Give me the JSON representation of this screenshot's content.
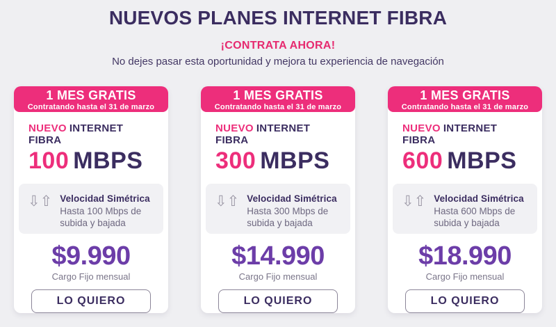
{
  "header": {
    "title": "NUEVOS PLANES INTERNET FIBRA",
    "cta_heading": "¡CONTRATA AHORA!",
    "cta_subheading": "No dejes pasar esta oportunidad y mejora tu experiencia de navegación"
  },
  "icons": {
    "down_arrow": "⇩",
    "up_arrow": "⇧"
  },
  "colors": {
    "pink_accent": "#ED2E7B",
    "cta_pink": "#E62A6F",
    "dark_purple": "#3B2D60",
    "price_purple": "#6C3DA8",
    "page_background": "#EFEFF2",
    "card_background": "#FFFFFF",
    "feature_box_background": "#F1F1F4",
    "muted_text": "#6E6880",
    "arrow_gray": "#9C98A6"
  },
  "cards": [
    {
      "badge_title": "1 MES GRATIS",
      "badge_subtitle": "Contratando hasta el 31 de marzo",
      "plan_tag_new": "NUEVO",
      "plan_tag_rest": "INTERNET FIBRA",
      "speed_value": "100",
      "speed_unit": "MBPS",
      "feature_title": "Velocidad Simétrica",
      "feature_desc": "Hasta 100 Mbps de subida y bajada",
      "price": "$9.990",
      "price_caption": "Cargo Fijo mensual",
      "cta_label": "LO QUIERO"
    },
    {
      "badge_title": "1 MES GRATIS",
      "badge_subtitle": "Contratando hasta el 31 de marzo",
      "plan_tag_new": "NUEVO",
      "plan_tag_rest": "INTERNET FIBRA",
      "speed_value": "300",
      "speed_unit": "MBPS",
      "feature_title": "Velocidad Simétrica",
      "feature_desc": "Hasta 300 Mbps de subida y bajada",
      "price": "$14.990",
      "price_caption": "Cargo Fijo mensual",
      "cta_label": "LO QUIERO"
    },
    {
      "badge_title": "1 MES GRATIS",
      "badge_subtitle": "Contratando hasta el 31 de marzo",
      "plan_tag_new": "NUEVO",
      "plan_tag_rest": "INTERNET FIBRA",
      "speed_value": "600",
      "speed_unit": "MBPS",
      "feature_title": "Velocidad Simétrica",
      "feature_desc": "Hasta 600 Mbps de subida y bajada",
      "price": "$18.990",
      "price_caption": "Cargo Fijo mensual",
      "cta_label": "LO QUIERO"
    }
  ]
}
